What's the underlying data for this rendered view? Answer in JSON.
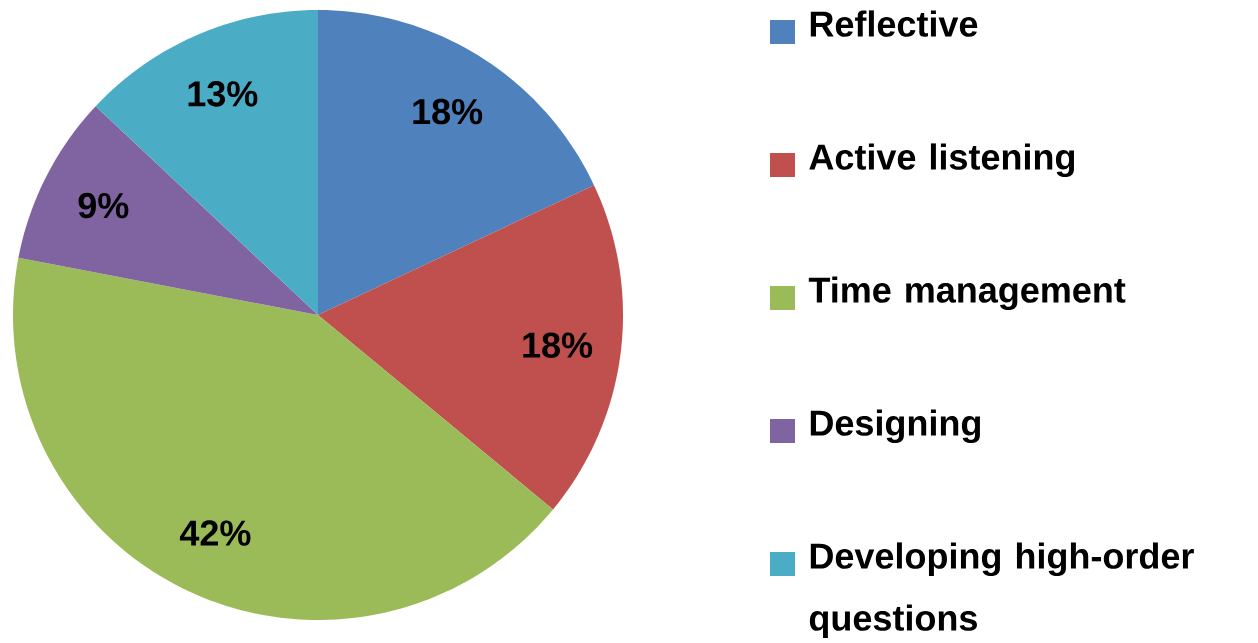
{
  "chart_data": {
    "type": "pie",
    "categories": [
      "Reflective",
      "Active listening",
      "Time management",
      "Designing",
      "Developing high-order questions"
    ],
    "values": [
      18,
      18,
      42,
      9,
      13
    ],
    "value_labels": [
      "18%",
      "18%",
      "42%",
      "9%",
      "13%"
    ],
    "colors": [
      "#4f81bd",
      "#c0504d",
      "#9bbb59",
      "#8064a2",
      "#4bacc6"
    ],
    "legend": "right"
  }
}
